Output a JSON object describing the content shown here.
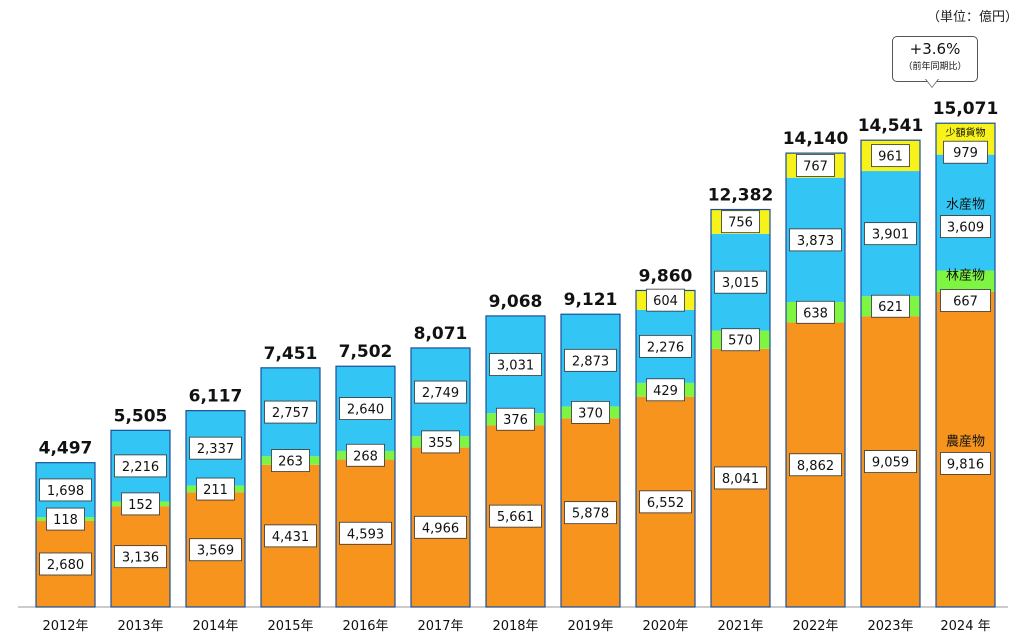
{
  "unit_note": "（単位：億円）",
  "callout": {
    "change": "+3.6%",
    "note": "（前年同期比）"
  },
  "colors": {
    "agriculture": "#f7941d",
    "forestry": "#7ef542",
    "fishery": "#33c6f4",
    "small_cargo": "#f7f21a",
    "outline": "#1a4f9c"
  },
  "chart_data": {
    "type": "bar",
    "stacked": true,
    "categories": [
      "2012年",
      "2013年",
      "2014年",
      "2015年",
      "2016年",
      "2017年",
      "2018年",
      "2019年",
      "2020年",
      "2021年",
      "2022年",
      "2023年",
      "2024 年"
    ],
    "totals": [
      4497,
      5505,
      6117,
      7451,
      7502,
      8071,
      9068,
      9121,
      9860,
      12382,
      14140,
      14541,
      15071
    ],
    "series": [
      {
        "key": "agriculture",
        "name": "農産物",
        "values": [
          2680,
          3136,
          3569,
          4431,
          4593,
          4966,
          5661,
          5878,
          6552,
          8041,
          8862,
          9059,
          9816
        ]
      },
      {
        "key": "forestry",
        "name": "林産物",
        "values": [
          118,
          152,
          211,
          263,
          268,
          355,
          376,
          370,
          429,
          570,
          638,
          621,
          667
        ]
      },
      {
        "key": "fishery",
        "name": "水産物",
        "values": [
          1698,
          2216,
          2337,
          2757,
          2640,
          2749,
          3031,
          2873,
          2276,
          3015,
          3873,
          3901,
          3609
        ]
      },
      {
        "key": "small_cargo",
        "name": "少額貨物",
        "values": [
          0,
          0,
          0,
          0,
          0,
          0,
          0,
          0,
          604,
          756,
          767,
          961,
          979
        ]
      }
    ],
    "ylim": [
      0,
      16000
    ]
  }
}
